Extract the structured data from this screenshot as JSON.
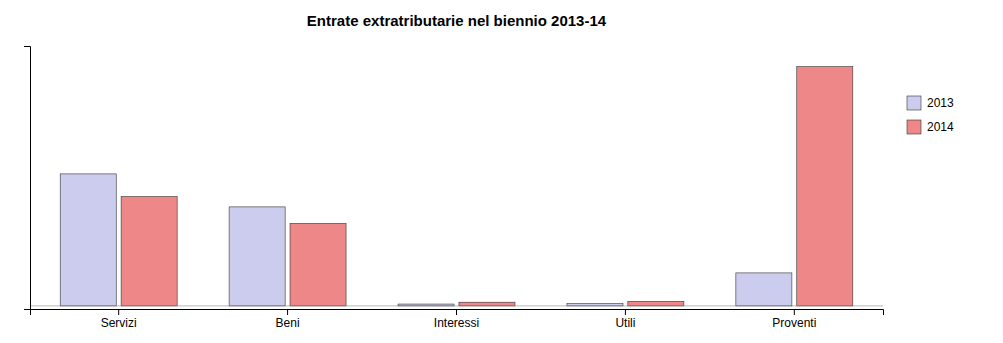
{
  "chart_data": {
    "type": "bar",
    "title": "Entrate extratributarie nel biennio 2013-14",
    "categories": [
      "Servizi",
      "Beni",
      "Interessi",
      "Utili",
      "Proventi"
    ],
    "series": [
      {
        "name": "2013",
        "color": "#ccccee",
        "values": [
          3200000,
          2400000,
          45000,
          55000,
          800000
        ]
      },
      {
        "name": "2014",
        "color": "#ee8888",
        "values": [
          2650000,
          2000000,
          90000,
          110000,
          5800000
        ]
      }
    ],
    "ylim": [
      -75000,
      6300000
    ],
    "tick_labels": "x",
    "legend": "right"
  }
}
